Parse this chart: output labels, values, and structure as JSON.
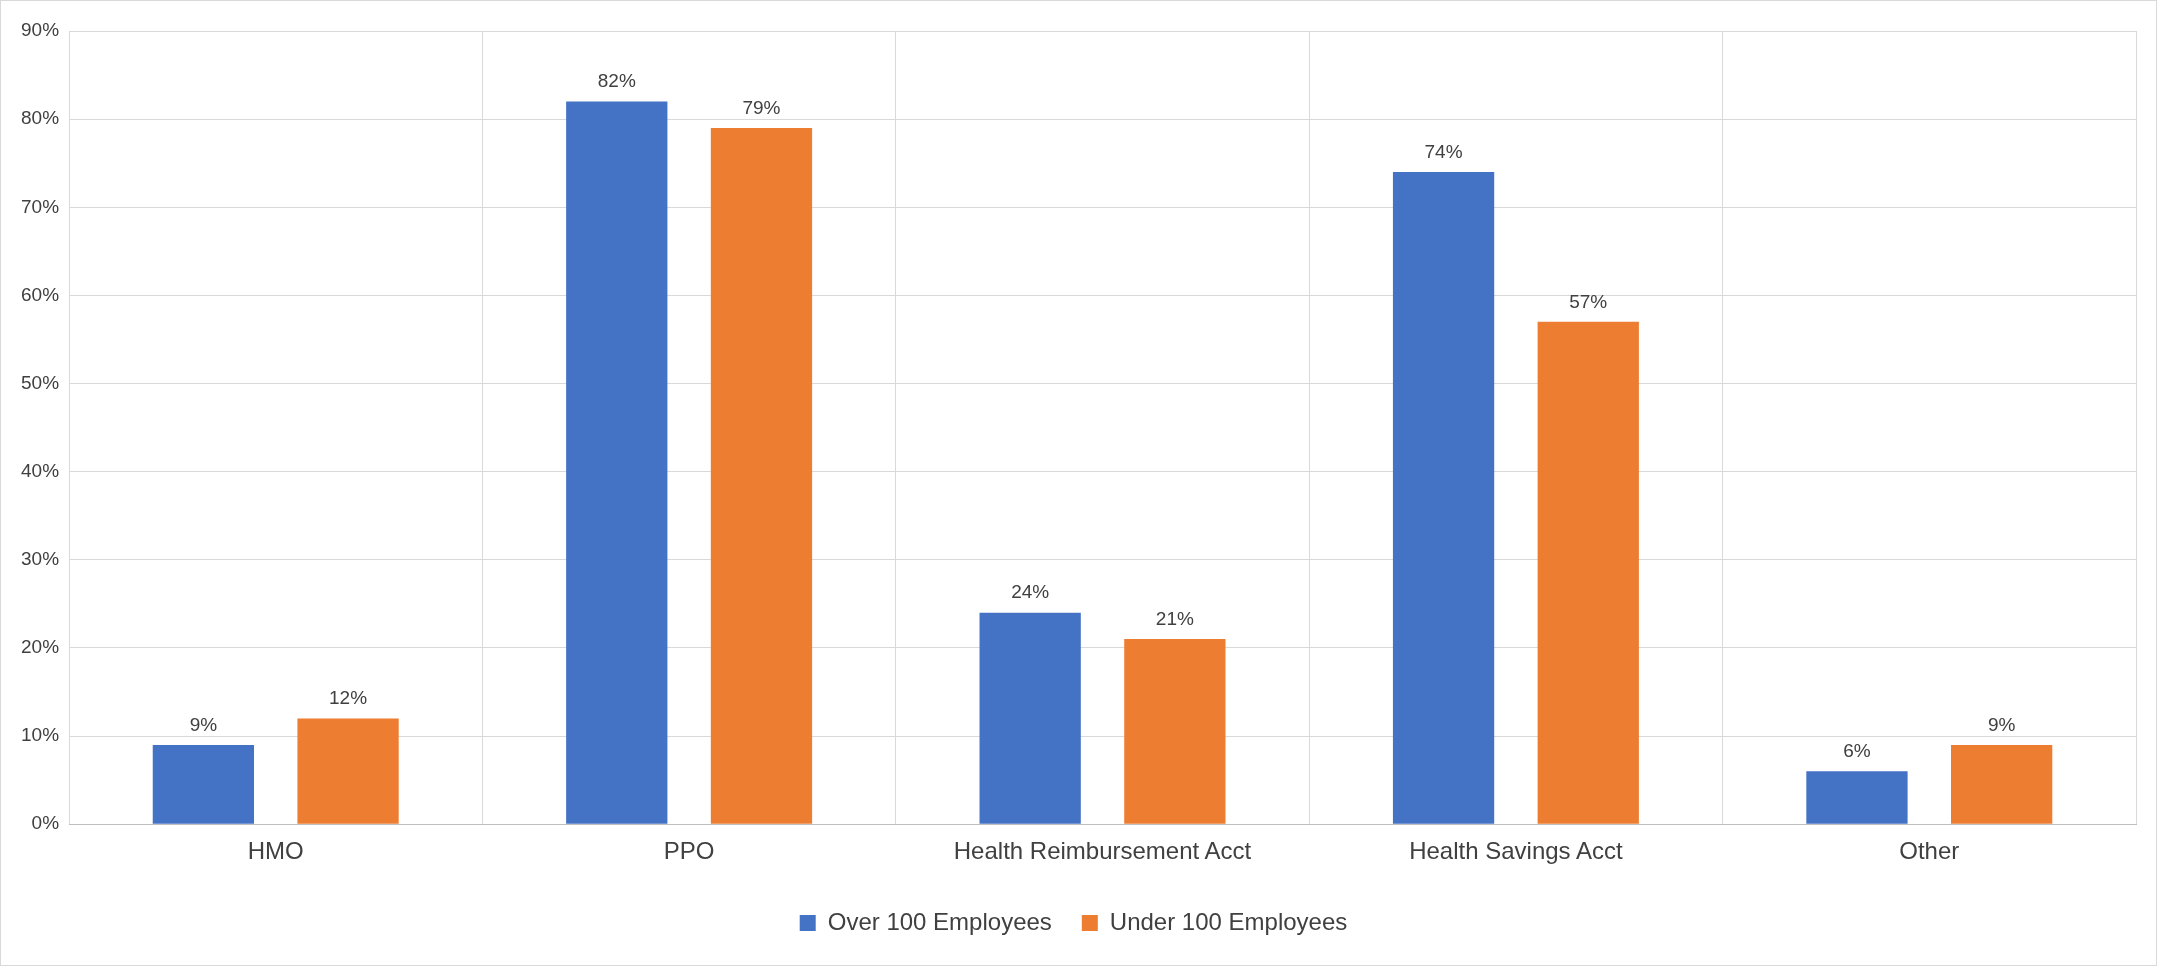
{
  "chart_data": {
    "type": "bar",
    "categories": [
      "HMO",
      "PPO",
      "Health Reimbursement Acct",
      "Health Savings Acct",
      "Other"
    ],
    "series": [
      {
        "name": "Over 100 Employees",
        "color": "#4472c4",
        "values": [
          9,
          82,
          24,
          74,
          6
        ],
        "value_labels": [
          "9%",
          "82%",
          "24%",
          "74%",
          "6%"
        ]
      },
      {
        "name": "Under 100 Employees",
        "color": "#ed7d31",
        "values": [
          12,
          79,
          21,
          57,
          9
        ],
        "value_labels": [
          "12%",
          "79%",
          "21%",
          "57%",
          "9%"
        ]
      }
    ],
    "ylim": [
      0,
      90
    ],
    "yticks": [
      {
        "value": 0,
        "label": "0%"
      },
      {
        "value": 10,
        "label": "10%"
      },
      {
        "value": 20,
        "label": "20%"
      },
      {
        "value": 30,
        "label": "30%"
      },
      {
        "value": 40,
        "label": "40%"
      },
      {
        "value": 50,
        "label": "50%"
      },
      {
        "value": 60,
        "label": "60%"
      },
      {
        "value": 70,
        "label": "70%"
      },
      {
        "value": 80,
        "label": "80%"
      },
      {
        "value": 90,
        "label": "90%"
      }
    ],
    "grid": true,
    "legend": "bottom"
  }
}
